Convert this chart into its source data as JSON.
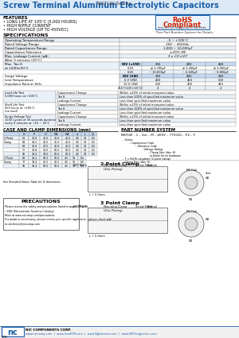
{
  "title_blue": "Screw Terminal Aluminum Electrolytic Capacitors",
  "title_suffix": "NSTLW Series",
  "blue_color": "#1a5fa8",
  "features": [
    "FEATURES",
    "• LONG LIFE AT 105°C (5,000 HOURS)",
    "• HIGH RIPPLE CURRENT",
    "• HIGH VOLTAGE (UP TO 450VDC)"
  ],
  "rohs1": "RoHS",
  "rohs2": "Compliant",
  "rohs3": "Includes all Halogenated Materials",
  "rohs_note": "*See Part Number System for Details",
  "specs_header": "SPECIFICATIONS",
  "specs_rows": [
    [
      "Operating Temperature Range",
      "-5 ~ +105°C"
    ],
    [
      "Rated Voltage Range",
      "350 ~ 450Vdc"
    ],
    [
      "Rated Capacitance Range",
      "1,000 ~ 10,000µF"
    ],
    [
      "Capacitance Tolerance",
      "±20% (M)"
    ],
    [
      "Max. Leakage Current (µA)",
      "3 x √(C×V)*"
    ],
    [
      "After 5 minutes (20°C)",
      ""
    ]
  ],
  "tan_header": [
    "WV (±VW)",
    "350",
    "400",
    "450"
  ],
  "tan_rows": [
    [
      "Max. Tan δ",
      "0.20",
      "≤ 2,700µF",
      "≤ 3,300µF",
      "≤ 3,900µF"
    ],
    [
      "at 120Hz/20°C",
      "0.25",
      "~ 10,000µF",
      "~ 6,600µF",
      "~ 6,800µF"
    ]
  ],
  "surge_header": [
    "WV (VW)",
    "350",
    "400",
    "450"
  ],
  "surge_rows": [
    [
      "Surge Voltage",
      "5 V (VW)",
      "400",
      "450",
      "500"
    ],
    [
      "Line Temperature",
      "10 V (VW)",
      "500",
      "400",
      "450"
    ],
    [
      "Impedance Ratio at 1kHz",
      "Z(-5°C)/Z(+20°C)",
      "4",
      "4",
      "4"
    ]
  ],
  "life_tests": [
    {
      "label": [
        "Load Life Test",
        "5,000 hours at +105°C"
      ],
      "rows": [
        [
          "Capacitance Change",
          "Within ±20% of initial measured value"
        ],
        [
          "Tan δ",
          "Less than 200% of specified maximum value"
        ],
        [
          "Leakage Current",
          "Less than specified maximum value"
        ]
      ]
    },
    {
      "label": [
        "Shelf Life Test",
        "500 hours at +105°C",
        "(no load)"
      ],
      "rows": [
        [
          "Capacitance Change",
          "Within ±20% of initial measured value"
        ],
        [
          "Tan δ",
          "Less than 300% of specified maximum value"
        ],
        [
          "Leakage Current",
          "Less than specified maximum value"
        ]
      ]
    },
    {
      "label": [
        "Surge Voltage Test",
        "1000 Cycles of 30 seconds duration",
        "every 6 minutes at +15 ~ 35°C"
      ],
      "rows": [
        [
          "Capacitance Change",
          "Within ±10% of initial measured value"
        ],
        [
          "Tan δ",
          "Less than specified maximum value"
        ],
        [
          "Leakage Current",
          "Less than specified maximum value"
        ]
      ]
    }
  ],
  "case_title": "CASE AND CLAMP DIMENSIONS (mm)",
  "case_cols": [
    "",
    "D",
    "P",
    "H",
    "W1",
    "W2",
    "d",
    "L",
    "L1"
  ],
  "case_2pt": [
    [
      "2 Point",
      "51",
      "21.8",
      "35.0",
      "45.0",
      "45.0",
      "4.5",
      "54",
      "6.5"
    ],
    [
      "Clamp",
      "64",
      "28.2",
      "40.0",
      "45.0",
      "45.0",
      "4.5",
      "54",
      "6.5"
    ],
    [
      "",
      "64",
      "31.4",
      "47.0",
      "45.0",
      "45.0",
      "4.5",
      "54",
      "6.5"
    ],
    [
      "",
      "77",
      "32.8",
      "54.0",
      "60.0",
      "60.0",
      "4.5",
      "54",
      "6.5"
    ],
    [
      "",
      "90",
      "33.4",
      "74.0",
      "60.0",
      "60.0",
      "4.5",
      "74",
      "6.5"
    ]
  ],
  "case_3pt": [
    [
      "3 Point",
      "64",
      "28.2",
      "50.0",
      "50.0",
      "4.5",
      "54",
      "6.5"
    ],
    [
      "Clamp",
      "77",
      "33.4",
      "45.5",
      "45.5",
      "4.5",
      "54",
      "6.5"
    ],
    [
      "",
      "90",
      "33.4",
      "50.0",
      "50.0",
      "4.5",
      "74",
      "6.5"
    ]
  ],
  "std_note": "See Standard Values Table for 'd' dimensions",
  "pn_title": "PART NUMBER SYSTEM",
  "pn_string": "NSTLW – 1 – 3m – M – 400V – 77X141 – P2 – F",
  "pn_labels": [
    "– Series",
    "– Capacitance Code",
    "– Tolerance Code",
    "– Voltage Rating",
    "– Clamp Size (dim. H)",
    "– or blank for no hardware",
    "– F = RoHS compliant\n  (2 point clamp)",
    "– Clamp Size (dim. H)"
  ],
  "precautions_title": "PRECAUTIONS",
  "precautions": [
    "Please review the safety and precautions found in pages P4 & P5:",
    "• ESD (Electrostatic Sensitive Catalog)",
    "Must at www.niccomp.com/precautions",
    "If a doubt or uncertainty, please review your specific application - please check with",
    "nrc-technical@niccomp.com"
  ],
  "footer_page": "178",
  "footer_urls": "www.niccomp.com  |  www.loveESR.com  |  www.NJpassives.com  |  www.SMTmagnetics.com",
  "table_hdr_bg": "#c5d9f1",
  "table_alt_bg": "#e9f0f8",
  "table_white": "#ffffff",
  "border": "#999999"
}
